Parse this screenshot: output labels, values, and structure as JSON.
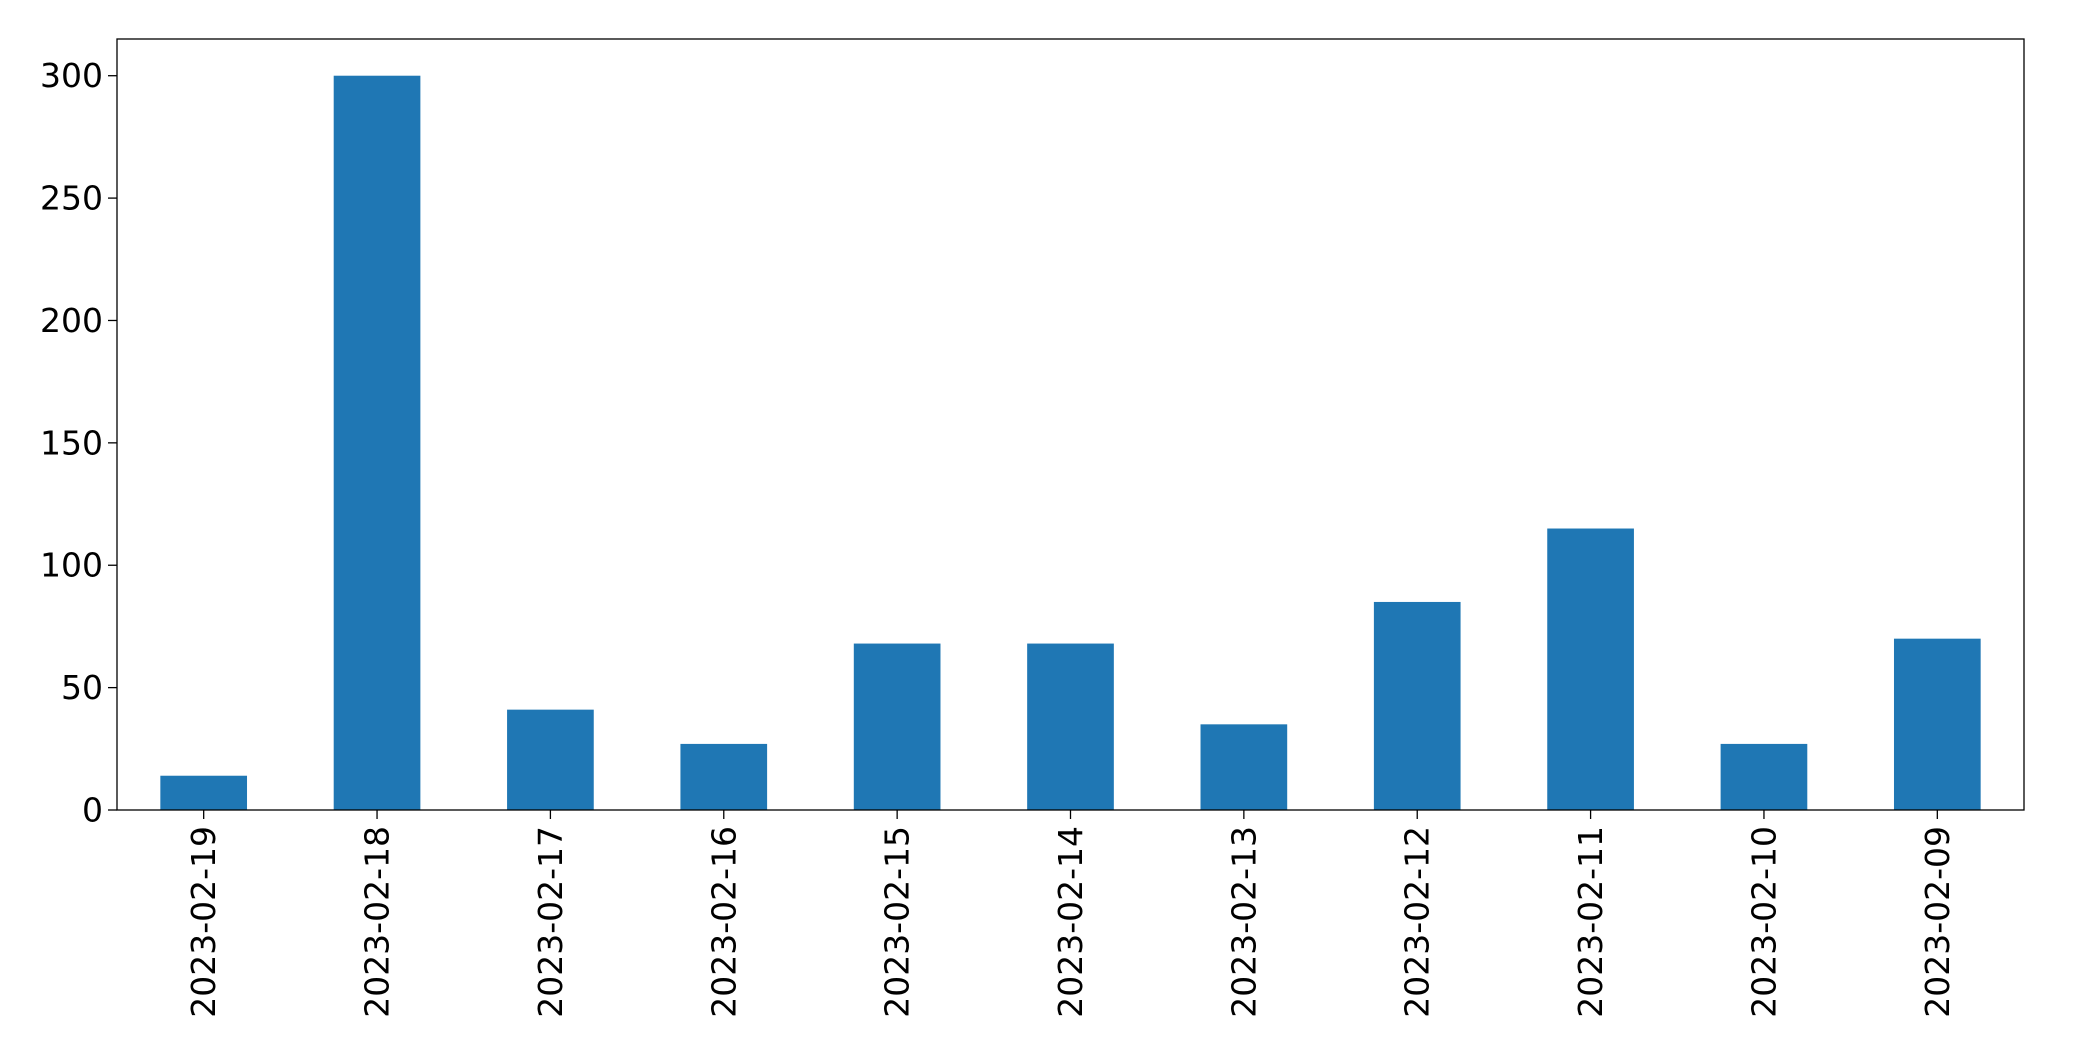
{
  "chart_data": {
    "type": "bar",
    "title": "",
    "xlabel": "",
    "ylabel": "",
    "categories": [
      "2023-02-19",
      "2023-02-18",
      "2023-02-17",
      "2023-02-16",
      "2023-02-15",
      "2023-02-14",
      "2023-02-13",
      "2023-02-12",
      "2023-02-11",
      "2023-02-10",
      "2023-02-09"
    ],
    "values": [
      14,
      300,
      41,
      27,
      68,
      68,
      35,
      85,
      115,
      27,
      70
    ],
    "ylim": [
      0,
      315
    ],
    "yticks": [
      0,
      50,
      100,
      150,
      200,
      250,
      300
    ],
    "grid": false,
    "legend": "none",
    "colors": {
      "bar": "#1f77b4",
      "axis": "#000000",
      "background": "#ffffff"
    }
  }
}
